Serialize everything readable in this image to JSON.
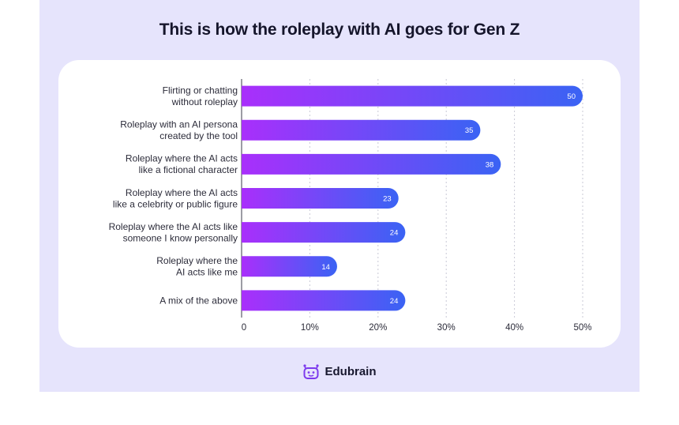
{
  "header": {
    "title": "This is how the roleplay with AI goes for Gen Z"
  },
  "brand": {
    "name": "Edubrain",
    "logo_icon": "robot-face-icon",
    "color": "#7c3aed"
  },
  "chart_data": {
    "type": "bar",
    "orientation": "horizontal",
    "categories": [
      [
        "Flirting or chatting",
        "without roleplay"
      ],
      [
        "Roleplay with an AI persona",
        "created by the tool"
      ],
      [
        "Roleplay where the AI acts",
        "like a fictional character"
      ],
      [
        "Roleplay where the AI acts",
        "like a celebrity or public figure"
      ],
      [
        "Roleplay where the AI acts like",
        "someone I know personally"
      ],
      [
        "Roleplay where the",
        "AI acts like me"
      ],
      [
        "A mix of the above"
      ]
    ],
    "values": [
      50,
      35,
      38,
      23,
      24,
      14,
      24
    ],
    "xlim": [
      0,
      50
    ],
    "xticks": [
      0,
      10,
      20,
      30,
      40,
      50
    ],
    "xtick_labels": [
      "0",
      "10%",
      "20%",
      "30%",
      "40%",
      "50%"
    ],
    "grid": "vertical-dotted",
    "bar_gradient": [
      "#a92ffb",
      "#3a63f4"
    ],
    "data_labels": true
  }
}
